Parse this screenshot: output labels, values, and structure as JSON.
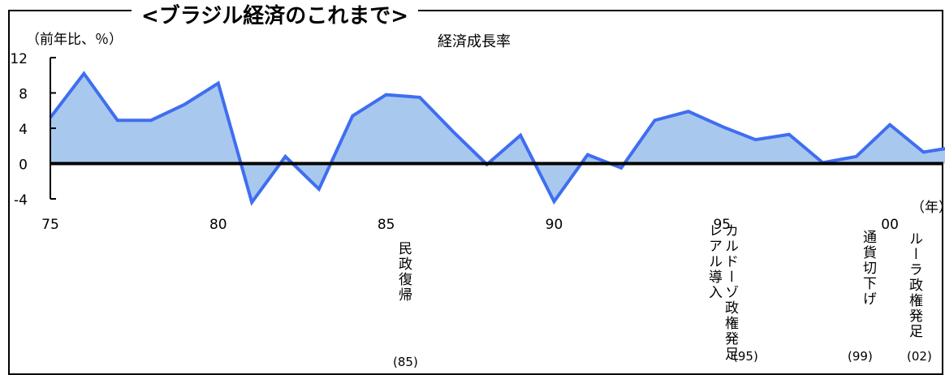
{
  "title": "<ブラジル経済のこれまで>",
  "chart_data": {
    "type": "area",
    "title": "経済成長率",
    "ylabel": "（前年比、％）",
    "xlabel": "（年）",
    "x": [
      1975,
      1976,
      1977,
      1978,
      1979,
      1980,
      1981,
      1982,
      1983,
      1984,
      1985,
      1986,
      1987,
      1988,
      1989,
      1990,
      1991,
      1992,
      1993,
      1994,
      1995,
      1996,
      1997,
      1998,
      1999,
      2000,
      2001,
      2002
    ],
    "y": [
      5.2,
      10.2,
      4.9,
      4.9,
      6.7,
      9.1,
      -4.4,
      0.8,
      -2.9,
      5.4,
      7.8,
      7.5,
      3.6,
      -0.1,
      3.2,
      -4.3,
      1.0,
      -0.5,
      4.9,
      5.9,
      4.2,
      2.7,
      3.3,
      0.1,
      0.8,
      4.4,
      1.3,
      1.9
    ],
    "xlim": [
      1975,
      2008
    ],
    "ylim": [
      -4,
      12
    ],
    "yticks": [
      "12",
      "8",
      "4",
      "0",
      "-4"
    ],
    "ytick_values": [
      12,
      8,
      4,
      0,
      -4
    ],
    "xticks": [
      "75",
      "80",
      "85",
      "90",
      "95",
      "00"
    ],
    "xtick_values": [
      1975,
      1980,
      1985,
      1990,
      1995,
      2000
    ],
    "grid": false,
    "colors": {
      "line": "#3f6ef0",
      "fill": "#a9c8ee",
      "zero_line": "#000000",
      "axis": "#000000"
    }
  },
  "events": [
    {
      "lines": [
        "民政復帰"
      ],
      "year": "(85)"
    },
    {
      "lines": [
        "カルドーゾ政権発足",
        "レアル導入"
      ],
      "year": "(95)"
    },
    {
      "lines": [
        "通貨切下げ"
      ],
      "year": "(99)"
    },
    {
      "lines": [
        "ルーラ政権発足"
      ],
      "year": "(02)"
    }
  ]
}
